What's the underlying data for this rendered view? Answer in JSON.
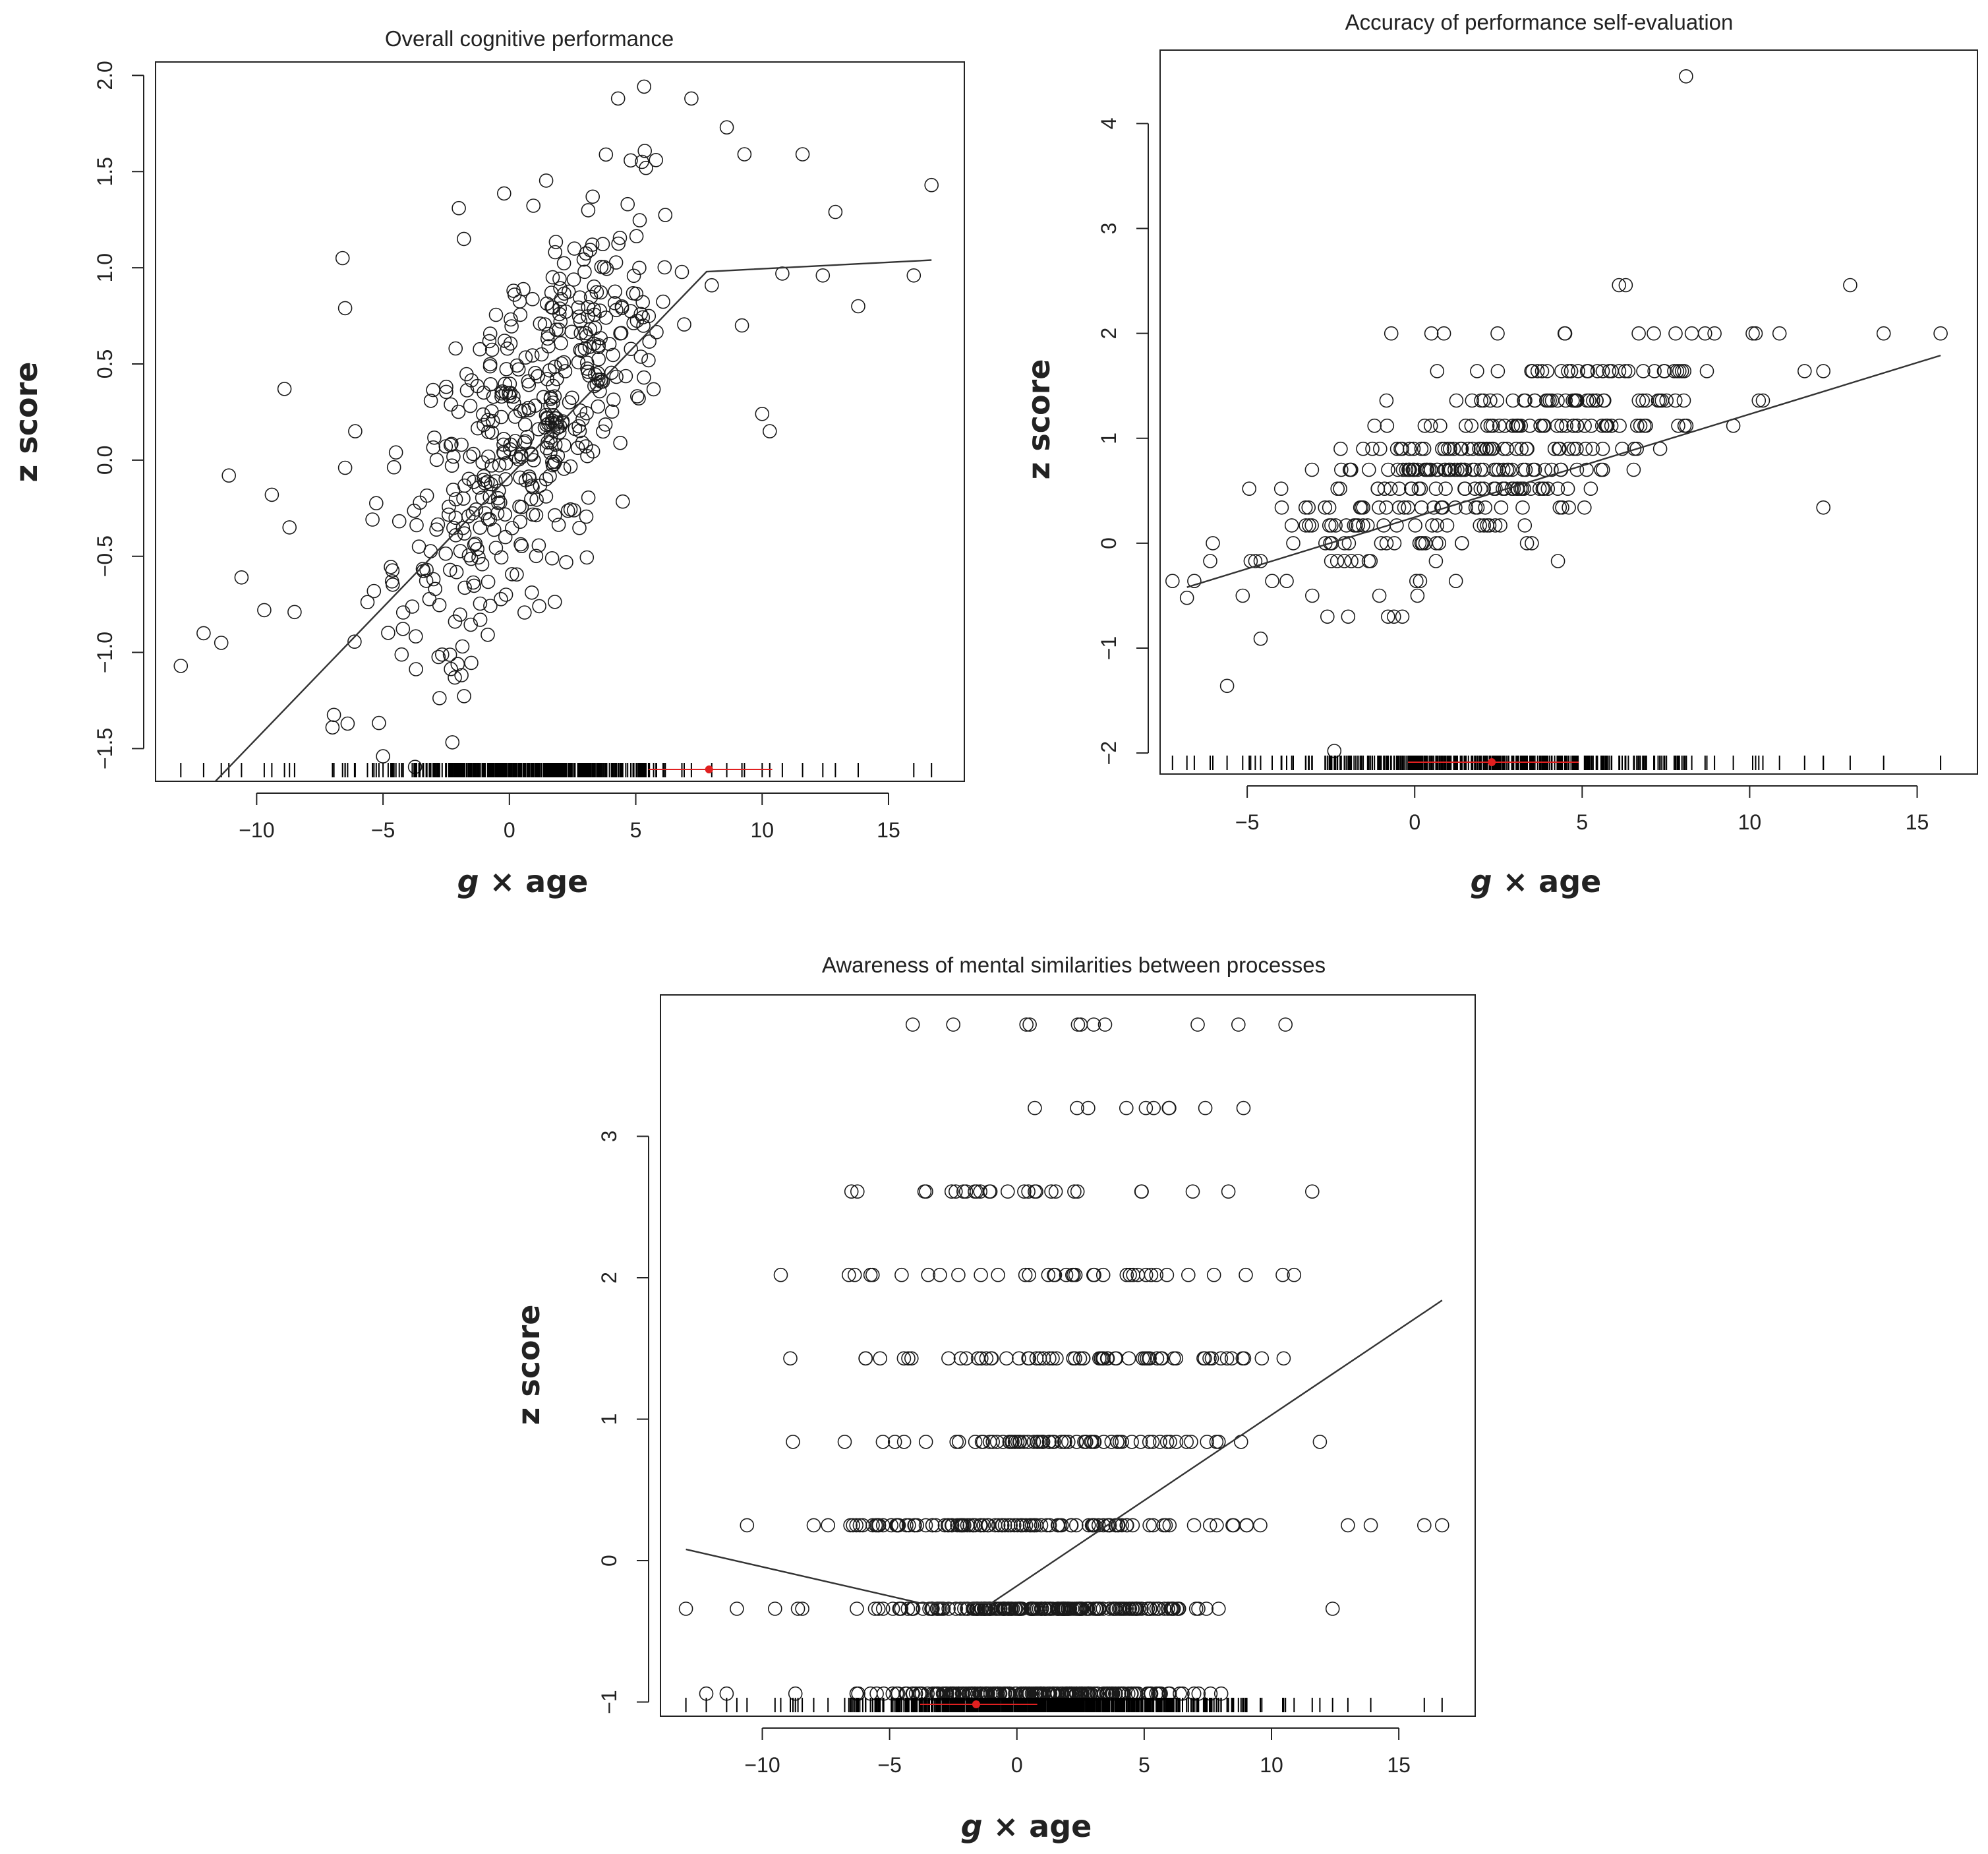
{
  "colors": {
    "ink": "#222222",
    "marker": "#1a1a1a",
    "fit": "#333333",
    "rug_marker": "#e02020",
    "background": "#ffffff"
  },
  "chart_data": [
    {
      "id": "overall",
      "type": "scatter",
      "title": "Overall cognitive performance",
      "xlabel_var": "g",
      "xlabel_rest": " × age",
      "ylabel": "z score",
      "xlim": [
        -14.0,
        18.0
      ],
      "ylim": [
        -1.67,
        2.07
      ],
      "xticks": [
        -10,
        -5,
        0,
        5,
        10,
        15
      ],
      "xtick_labels": [
        "−10",
        "−5",
        "0",
        "5",
        "10",
        "15"
      ],
      "yticks": [
        -1.5,
        -1.0,
        -0.5,
        0.0,
        0.5,
        1.0,
        1.5,
        2.0
      ],
      "ytick_labels": [
        "−1.5",
        "−1.0",
        "−0.5",
        "0.0",
        "0.5",
        "1.0",
        "1.5",
        "2.0"
      ],
      "fit_line": [
        [
          -12.0,
          -1.72
        ],
        [
          7.8,
          0.98
        ],
        [
          16.7,
          1.04
        ]
      ],
      "rug_marker": {
        "x": 7.9,
        "span": [
          5.5,
          10.4
        ]
      },
      "points": {
        "seed": 11,
        "clusters": [
          {
            "n": 260,
            "xm": 0.5,
            "xs": 2.1,
            "slope": 0.135,
            "b": 0.05,
            "sd": 0.42
          },
          {
            "n": 140,
            "xm": 3.0,
            "xs": 1.8,
            "slope": 0.12,
            "b": 0.25,
            "sd": 0.4
          },
          {
            "n": 60,
            "xm": -3.0,
            "xs": 1.5,
            "slope": 0.14,
            "b": 0.05,
            "sd": 0.55
          }
        ],
        "extra": [
          [
            -13.0,
            -1.07
          ],
          [
            -12.1,
            -0.9
          ],
          [
            -11.4,
            -0.95
          ],
          [
            -11.1,
            -0.08
          ],
          [
            -10.6,
            -0.61
          ],
          [
            -9.7,
            -0.78
          ],
          [
            -9.4,
            -0.18
          ],
          [
            -8.9,
            0.37
          ],
          [
            -8.7,
            -0.35
          ],
          [
            -8.5,
            -0.79
          ],
          [
            -6.6,
            1.05
          ],
          [
            -6.5,
            0.79
          ],
          [
            -6.5,
            -0.04
          ],
          [
            -6.1,
            0.15
          ],
          [
            -7.0,
            -1.39
          ],
          [
            -6.4,
            -1.37
          ],
          [
            -5.0,
            -1.54
          ],
          [
            -2.0,
            1.31
          ],
          [
            -1.8,
            1.15
          ],
          [
            4.3,
            1.88
          ],
          [
            7.2,
            1.88
          ],
          [
            8.6,
            1.73
          ],
          [
            5.8,
            1.56
          ],
          [
            9.3,
            1.59
          ],
          [
            11.6,
            1.59
          ],
          [
            12.9,
            1.29
          ],
          [
            13.8,
            0.8
          ],
          [
            10.8,
            0.97
          ],
          [
            10.0,
            0.24
          ],
          [
            10.3,
            0.15
          ],
          [
            9.2,
            0.7
          ],
          [
            16.7,
            1.43
          ],
          [
            16.0,
            0.96
          ],
          [
            12.4,
            0.96
          ]
        ]
      }
    },
    {
      "id": "accuracy",
      "type": "scatter",
      "title": "Accuracy of performance self-evaluation",
      "xlabel_var": "g",
      "xlabel_rest": " × age",
      "ylabel": "z score",
      "xlim": [
        -7.6,
        16.8
      ],
      "ylim": [
        -2.2,
        4.7
      ],
      "xticks": [
        -5,
        0,
        5,
        10,
        15
      ],
      "xtick_labels": [
        "−5",
        "0",
        "5",
        "10",
        "15"
      ],
      "yticks": [
        -2,
        -1,
        0,
        1,
        2,
        3,
        4
      ],
      "ytick_labels": [
        "−2",
        "−1",
        "0",
        "1",
        "2",
        "3",
        "4"
      ],
      "fit_line": [
        [
          -6.8,
          -0.42
        ],
        [
          15.7,
          1.79
        ]
      ],
      "rug_marker": {
        "x": 2.3,
        "span": [
          -0.2,
          4.9
        ]
      },
      "points": {
        "seed": 23,
        "levels": [
          -1.36,
          -1.13,
          -0.91,
          -0.7,
          -0.5,
          -0.36,
          -0.17,
          0.0,
          0.17,
          0.34,
          0.52,
          0.7,
          0.9,
          1.12,
          1.36,
          1.64,
          2.0
        ],
        "clusters": [
          {
            "n": 300,
            "xm": 1.0,
            "xs": 2.8,
            "slope": 0.11,
            "b": 0.5,
            "sd": 0.42
          },
          {
            "n": 90,
            "xm": 5.5,
            "xs": 2.6,
            "slope": 0.08,
            "b": 0.8,
            "sd": 0.35
          }
        ],
        "extra": [
          [
            8.1,
            4.45
          ],
          [
            6.1,
            2.46
          ],
          [
            6.3,
            2.46
          ],
          [
            13.0,
            2.46
          ],
          [
            -2.4,
            -1.98
          ],
          [
            -0.7,
            2.0
          ],
          [
            0.5,
            2.0
          ],
          [
            14.0,
            2.0
          ],
          [
            15.7,
            2.0
          ],
          [
            12.2,
            0.34
          ],
          [
            12.2,
            1.64
          ],
          [
            -5.6,
            -1.36
          ],
          [
            -4.6,
            -0.91
          ],
          [
            -6.8,
            -0.52
          ]
        ]
      }
    },
    {
      "id": "awareness",
      "type": "scatter",
      "title": "Awareness of mental similarities between processes",
      "xlabel_var": "g",
      "xlabel_rest": " × age",
      "ylabel": "z score",
      "xlim": [
        -14.0,
        18.0
      ],
      "ylim": [
        -1.1,
        4.0
      ],
      "xticks": [
        -10,
        -5,
        0,
        5,
        10,
        15
      ],
      "xtick_labels": [
        "−10",
        "−5",
        "0",
        "5",
        "10",
        "15"
      ],
      "yticks": [
        -1,
        0,
        1,
        2,
        3
      ],
      "ytick_labels": [
        "−1",
        "0",
        "1",
        "2",
        "3"
      ],
      "fit_line": [
        [
          -13.0,
          0.08
        ],
        [
          -3.8,
          -0.3
        ],
        [
          -1.0,
          -0.3
        ],
        [
          16.7,
          1.84
        ]
      ],
      "rug_marker": {
        "x": -1.6,
        "span": [
          -3.8,
          0.8
        ]
      },
      "points": {
        "seed": 37,
        "levels": [
          -0.94,
          -0.34,
          0.25,
          0.84,
          1.43,
          2.02,
          2.61,
          3.2,
          3.79
        ],
        "level_weights": [
          230,
          200,
          110,
          70,
          60,
          35,
          25,
          6,
          6
        ],
        "xm": 0.8,
        "xs": 3.5,
        "extra": [
          [
            -13.0,
            -0.34
          ],
          [
            -12.2,
            -0.94
          ],
          [
            -11.4,
            -0.94
          ],
          [
            -11.0,
            -0.34
          ],
          [
            -10.6,
            0.25
          ],
          [
            -9.5,
            -0.34
          ],
          [
            -8.9,
            1.43
          ],
          [
            -8.7,
            -0.94
          ],
          [
            -8.6,
            -0.34
          ],
          [
            -6.5,
            2.61
          ],
          [
            -6.6,
            2.02
          ],
          [
            16.0,
            0.25
          ],
          [
            16.7,
            0.25
          ],
          [
            13.9,
            0.25
          ],
          [
            13.0,
            0.25
          ],
          [
            12.4,
            -0.34
          ],
          [
            11.9,
            0.84
          ],
          [
            11.6,
            2.61
          ],
          [
            -2.5,
            3.79
          ],
          [
            0.5,
            3.79
          ],
          [
            2.4,
            3.79
          ],
          [
            7.1,
            3.79
          ],
          [
            8.7,
            3.79
          ],
          [
            2.8,
            3.2
          ],
          [
            4.3,
            3.2
          ],
          [
            7.4,
            3.2
          ],
          [
            8.9,
            3.2
          ]
        ]
      }
    }
  ]
}
